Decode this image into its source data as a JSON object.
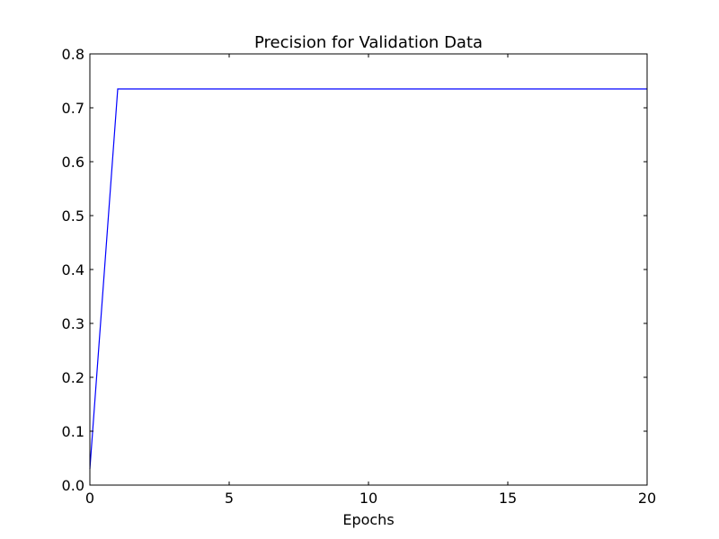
{
  "chart_data": {
    "type": "line",
    "title": "Precision for Validation Data",
    "xlabel": "Epochs",
    "ylabel": "",
    "xlim": [
      0,
      20
    ],
    "ylim": [
      0.0,
      0.8
    ],
    "xticks": [
      0,
      5,
      10,
      15,
      20
    ],
    "xtick_labels": [
      "0",
      "5",
      "10",
      "15",
      "20"
    ],
    "yticks": [
      0.0,
      0.1,
      0.2,
      0.3,
      0.4,
      0.5,
      0.6,
      0.7,
      0.8
    ],
    "ytick_labels": [
      "0.0",
      "0.1",
      "0.2",
      "0.3",
      "0.4",
      "0.5",
      "0.6",
      "0.7",
      "0.8"
    ],
    "grid": false,
    "series": [
      {
        "color": "#0000ff",
        "x": [
          0,
          1,
          2,
          3,
          4,
          5,
          6,
          7,
          8,
          9,
          10,
          11,
          12,
          13,
          14,
          15,
          16,
          17,
          18,
          19,
          20
        ],
        "y": [
          0.03,
          0.735,
          0.735,
          0.735,
          0.735,
          0.735,
          0.735,
          0.735,
          0.735,
          0.735,
          0.735,
          0.735,
          0.735,
          0.735,
          0.735,
          0.735,
          0.735,
          0.735,
          0.735,
          0.735,
          0.735
        ]
      }
    ]
  }
}
